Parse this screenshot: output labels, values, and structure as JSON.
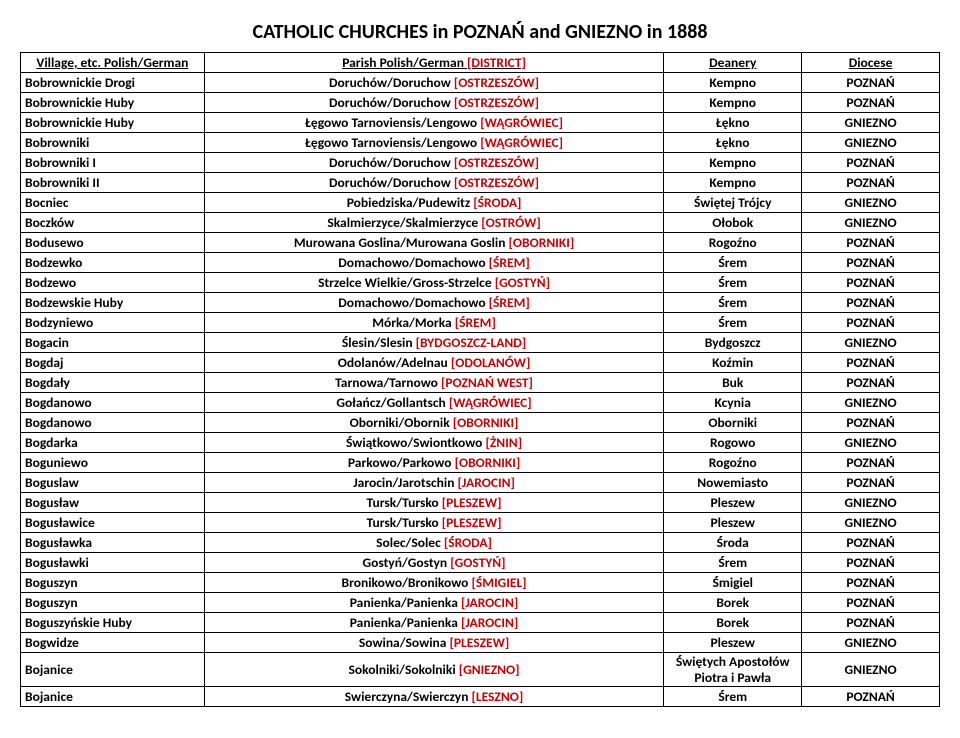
{
  "title": "CATHOLIC CHURCHES in POZNAŃ and GNIEZNO in 1888",
  "headers": {
    "village": "Village, etc. Polish/German",
    "parish_pre": "Parish Polish/German ",
    "parish_district": "[DISTRICT]",
    "deanery": "Deanery",
    "diocese": "Diocese"
  },
  "rows": [
    {
      "v": "Bobrownickie Drogi",
      "p": "Doruchów/Doruchow ",
      "d": "[OSTRZESZÓW]",
      "de": "Kempno",
      "di": "POZNAŃ"
    },
    {
      "v": "Bobrownickie Huby",
      "p": "Doruchów/Doruchow ",
      "d": "[OSTRZESZÓW]",
      "de": "Kempno",
      "di": "POZNAŃ"
    },
    {
      "v": "Bobrownickie Huby",
      "p": "Łęgowo Tarnoviensis/Lengowo ",
      "d": "[WĄGRÓWIEC]",
      "de": "Łękno",
      "di": "GNIEZNO"
    },
    {
      "v": "Bobrowniki",
      "p": "Łęgowo Tarnoviensis/Lengowo ",
      "d": "[WĄGRÓWIEC]",
      "de": "Łękno",
      "di": "GNIEZNO"
    },
    {
      "v": "Bobrowniki I",
      "p": "Doruchów/Doruchow ",
      "d": "[OSTRZESZÓW]",
      "de": "Kempno",
      "di": "POZNAŃ"
    },
    {
      "v": "Bobrowniki II",
      "p": "Doruchów/Doruchow ",
      "d": "[OSTRZESZÓW]",
      "de": "Kempno",
      "di": "POZNAŃ"
    },
    {
      "v": "Bocniec",
      "p": "Pobiedziska/Pudewitz ",
      "d": "[ŚRODA]",
      "de": "Świętej Trójcy",
      "di": "GNIEZNO"
    },
    {
      "v": "Boczków",
      "p": "Skalmierzyce/Skalmierzyce ",
      "d": "[OSTRÓW]",
      "de": "Ołobok",
      "di": "GNIEZNO"
    },
    {
      "v": "Bodusewo",
      "p": "Murowana Goslina/Murowana Goslin ",
      "d": "[OBORNIKI]",
      "de": "Rogoźno",
      "di": "POZNAŃ"
    },
    {
      "v": "Bodzewko",
      "p": "Domachowo/Domachowo ",
      "d": "[ŚREM]",
      "de": "Śrem",
      "di": "POZNAŃ"
    },
    {
      "v": "Bodzewo",
      "p": "Strzelce Wielkie/Gross-Strzelce ",
      "d": "[GOSTYŃ]",
      "de": "Śrem",
      "di": "POZNAŃ"
    },
    {
      "v": "Bodzewskie Huby",
      "p": "Domachowo/Domachowo ",
      "d": "[ŚREM]",
      "de": "Śrem",
      "di": "POZNAŃ"
    },
    {
      "v": "Bodzyniewo",
      "p": "Mórka/Morka ",
      "d": "[ŚREM]",
      "de": "Śrem",
      "di": "POZNAŃ"
    },
    {
      "v": "Bogacin",
      "p": "Ślesin/Slesin ",
      "d": "[BYDGOSZCZ-LAND]",
      "de": "Bydgoszcz",
      "di": "GNIEZNO"
    },
    {
      "v": "Bogdaj",
      "p": "Odolanów/Adelnau ",
      "d": "[ODOLANÓW]",
      "de": "Koźmin",
      "di": "POZNAŃ"
    },
    {
      "v": "Bogdały",
      "p": "Tarnowa/Tarnowo ",
      "d": "[POZNAŃ WEST]",
      "de": "Buk",
      "di": "POZNAŃ"
    },
    {
      "v": "Bogdanowo",
      "p": "Gołańcz/Gollantsch ",
      "d": "[WĄGRÓWIEC]",
      "de": "Kcynia",
      "di": "GNIEZNO"
    },
    {
      "v": "Bogdanowo",
      "p": "Oborniki/Obornik ",
      "d": "[OBORNIKI]",
      "de": "Oborniki",
      "di": "POZNAŃ"
    },
    {
      "v": "Bogdarka",
      "p": "Świątkowo/Swiontkowo ",
      "d": "[ŻNIN]",
      "de": "Rogowo",
      "di": "GNIEZNO"
    },
    {
      "v": "Boguniewo",
      "p": "Parkowo/Parkowo ",
      "d": "[OBORNIKI]",
      "de": "Rogoźno",
      "di": "POZNAŃ"
    },
    {
      "v": "Boguslaw",
      "p": "Jarocin/Jarotschin ",
      "d": "[JAROCIN]",
      "de": "Nowemiasto",
      "di": "POZNAŃ"
    },
    {
      "v": "Bogusław",
      "p": "Tursk/Tursko ",
      "d": "[PLESZEW]",
      "de": "Pleszew",
      "di": "GNIEZNO"
    },
    {
      "v": "Bogusławice",
      "p": "Tursk/Tursko ",
      "d": "[PLESZEW]",
      "de": "Pleszew",
      "di": "GNIEZNO"
    },
    {
      "v": "Bogusławka",
      "p": "Solec/Solec ",
      "d": "[ŚRODA]",
      "de": "Środa",
      "di": "POZNAŃ"
    },
    {
      "v": "Bogusławki",
      "p": "Gostyń/Gostyn ",
      "d": "[GOSTYŃ]",
      "de": "Śrem",
      "di": "POZNAŃ"
    },
    {
      "v": "Boguszyn",
      "p": "Bronikowo/Bronikowo ",
      "d": "[ŚMIGIEL]",
      "de": "Śmigiel",
      "di": "POZNAŃ"
    },
    {
      "v": "Boguszyn",
      "p": "Panienka/Panienka ",
      "d": "[JAROCIN]",
      "de": "Borek",
      "di": "POZNAŃ"
    },
    {
      "v": "Boguszyńskie Huby",
      "p": "Panienka/Panienka ",
      "d": "[JAROCIN]",
      "de": "Borek",
      "di": "POZNAŃ"
    },
    {
      "v": "Bogwidze",
      "p": "Sowina/Sowina ",
      "d": "[PLESZEW]",
      "de": "Pleszew",
      "di": "GNIEZNO"
    },
    {
      "v": "Bojanice",
      "p": "Sokolniki/Sokolniki ",
      "d": "[GNIEZNO]",
      "de": "Świętych Apostołów Piotra i Pawła",
      "di": "GNIEZNO",
      "wrap": true
    },
    {
      "v": "Bojanice",
      "p": "Swierczyna/Swierczyn ",
      "d": "[LESZNO]",
      "de": "Śrem",
      "di": "POZNAŃ"
    }
  ]
}
